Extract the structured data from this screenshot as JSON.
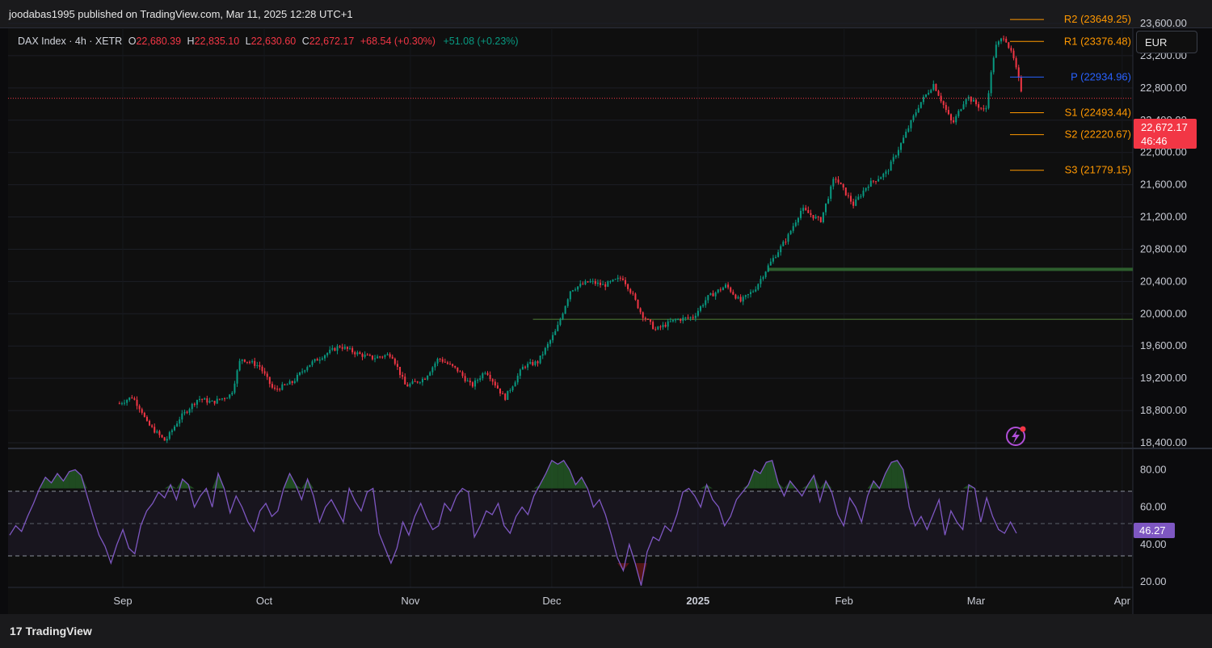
{
  "header": {
    "published": "joodabas1995 published on TradingView.com, Mar 11, 2025 12:28 UTC+1"
  },
  "legend": {
    "symbol": "DAX Index · 4h · XETR",
    "open_label": "O",
    "open": "22,680.39",
    "high_label": "H",
    "high": "22,835.10",
    "low_label": "L",
    "low": "22,630.60",
    "close_label": "C",
    "close": "22,672.17",
    "change": "+68.54 (+0.30%)",
    "change2": "+51.08 (+0.23%)"
  },
  "currency": "EUR",
  "price_tag": {
    "price": "22,672.17",
    "countdown": "46:46"
  },
  "rsi_tag": "46.27",
  "brand": "TradingView",
  "colors": {
    "up": "#089981",
    "down": "#f23645",
    "rsi": "#7e57c2",
    "pivot": "#2962ff",
    "levels": "#ff9800",
    "zone": "#2e5e2e",
    "price_line": "#f23645"
  },
  "chart_data": [
    {
      "type": "candlestick",
      "title": "DAX Index · 4h · XETR",
      "ylim": [
        18400,
        23600
      ],
      "y_ticks": [
        "23,600.00",
        "23,200.00",
        "22,800.00",
        "22,400.00",
        "22,000.00",
        "21,600.00",
        "21,200.00",
        "20,800.00",
        "20,400.00",
        "20,000.00",
        "19,600.00",
        "19,200.00",
        "18,800.00",
        "18,400.00"
      ],
      "x_ticks": [
        "Sep",
        "Oct",
        "Nov",
        "Dec",
        "2025",
        "Feb",
        "Mar",
        "Apr"
      ],
      "path_points": [
        [
          "Aug 21",
          18400
        ],
        [
          "Aug 26",
          18600
        ],
        [
          "Aug 30",
          18850
        ],
        [
          "Sep 3",
          18970
        ],
        [
          "Sep 5",
          18800
        ],
        [
          "Sep 6",
          18650
        ],
        [
          "Sep 10",
          18420
        ],
        [
          "Sep 13",
          18700
        ],
        [
          "Sep 17",
          18950
        ],
        [
          "Sep 20",
          18900
        ],
        [
          "Sep 24",
          19000
        ],
        [
          "Sep 26",
          19450
        ],
        [
          "Sep 30",
          19350
        ],
        [
          "Oct 3",
          19050
        ],
        [
          "Oct 7",
          19150
        ],
        [
          "Oct 10",
          19350
        ],
        [
          "Oct 14",
          19500
        ],
        [
          "Oct 17",
          19600
        ],
        [
          "Oct 21",
          19500
        ],
        [
          "Oct 24",
          19450
        ],
        [
          "Oct 28",
          19500
        ],
        [
          "Oct 31",
          19100
        ],
        [
          "Nov 4",
          19200
        ],
        [
          "Nov 7",
          19450
        ],
        [
          "Nov 11",
          19300
        ],
        [
          "Nov 14",
          19100
        ],
        [
          "Nov 17",
          19300
        ],
        [
          "Nov 21",
          18950
        ],
        [
          "Nov 25",
          19350
        ],
        [
          "Nov 28",
          19400
        ],
        [
          "Dec 2",
          19800
        ],
        [
          "Dec 5",
          20300
        ],
        [
          "Dec 9",
          20400
        ],
        [
          "Dec 12",
          20350
        ],
        [
          "Dec 16",
          20450
        ],
        [
          "Dec 18",
          20250
        ],
        [
          "Dec 20",
          20000
        ],
        [
          "Dec 23",
          19800
        ],
        [
          "Dec 27",
          19920
        ],
        [
          "Dec 31",
          19960
        ],
        [
          "Jan 3",
          20200
        ],
        [
          "Jan 7",
          20350
        ],
        [
          "Jan 10",
          20150
        ],
        [
          "Jan 13",
          20300
        ],
        [
          "Jan 16",
          20600
        ],
        [
          "Jan 20",
          20950
        ],
        [
          "Jan 23",
          21300
        ],
        [
          "Jan 27",
          21150
        ],
        [
          "Jan 30",
          21700
        ],
        [
          "Feb 3",
          21350
        ],
        [
          "Feb 6",
          21600
        ],
        [
          "Feb 10",
          21750
        ],
        [
          "Feb 13",
          22100
        ],
        [
          "Feb 17",
          22600
        ],
        [
          "Feb 20",
          22850
        ],
        [
          "Feb 24",
          22350
        ],
        [
          "Feb 27",
          22700
        ],
        [
          "Mar 3",
          22500
        ],
        [
          "Mar 5",
          23300
        ],
        [
          "Mar 7",
          23450
        ],
        [
          "Mar 9",
          23150
        ],
        [
          "Mar 11",
          22672
        ]
      ],
      "levels": [
        {
          "label": "R2 (23649.25)",
          "value": 23649.25
        },
        {
          "label": "R1 (23376.48)",
          "value": 23376.48
        },
        {
          "label": "P (22934.96)",
          "value": 22934.96
        },
        {
          "label": "S1 (22493.44)",
          "value": 22493.44
        },
        {
          "label": "S2 (22220.67)",
          "value": 22220.67
        },
        {
          "label": "S3 (21779.15)",
          "value": 21779.15
        }
      ],
      "support_zones": [
        20550,
        19930
      ],
      "last_price": 22672.17
    },
    {
      "type": "line",
      "title": "RSI",
      "ylim": [
        17,
        91
      ],
      "y_ticks": [
        "80.00",
        "60.00",
        "40.00",
        "20.00"
      ],
      "bands": [
        30,
        50,
        70
      ],
      "series": [
        {
          "values": [
            45,
            50,
            47,
            55,
            62,
            70,
            76,
            73,
            78,
            74,
            79,
            80,
            77,
            66,
            55,
            45,
            39,
            30,
            40,
            48,
            38,
            35,
            50,
            58,
            62,
            68,
            65,
            72,
            64,
            75,
            72,
            60,
            66,
            70,
            60,
            78,
            70,
            57,
            66,
            60,
            52,
            47,
            58,
            62,
            55,
            58,
            70,
            78,
            72,
            64,
            75,
            66,
            52,
            60,
            64,
            58,
            52,
            70,
            63,
            58,
            68,
            70,
            46,
            38,
            30,
            38,
            52,
            45,
            55,
            62,
            54,
            48,
            50,
            62,
            58,
            66,
            70,
            68,
            44,
            50,
            58,
            56,
            62,
            50,
            46,
            55,
            60,
            56,
            66,
            72,
            78,
            85,
            83,
            85,
            80,
            72,
            76,
            70,
            60,
            64,
            56,
            45,
            33,
            26,
            40,
            30,
            18,
            36,
            44,
            42,
            50,
            47,
            56,
            68,
            70,
            66,
            60,
            72,
            64,
            60,
            50,
            55,
            64,
            68,
            72,
            80,
            78,
            84,
            85,
            73,
            66,
            74,
            70,
            66,
            72,
            77,
            63,
            74,
            68,
            56,
            50,
            65,
            60,
            52,
            66,
            74,
            70,
            78,
            84,
            85,
            80,
            60,
            50,
            55,
            48,
            56,
            64,
            45,
            58,
            52,
            48,
            72,
            70,
            52,
            65,
            55,
            48,
            46,
            52,
            46
          ]
        }
      ]
    }
  ]
}
